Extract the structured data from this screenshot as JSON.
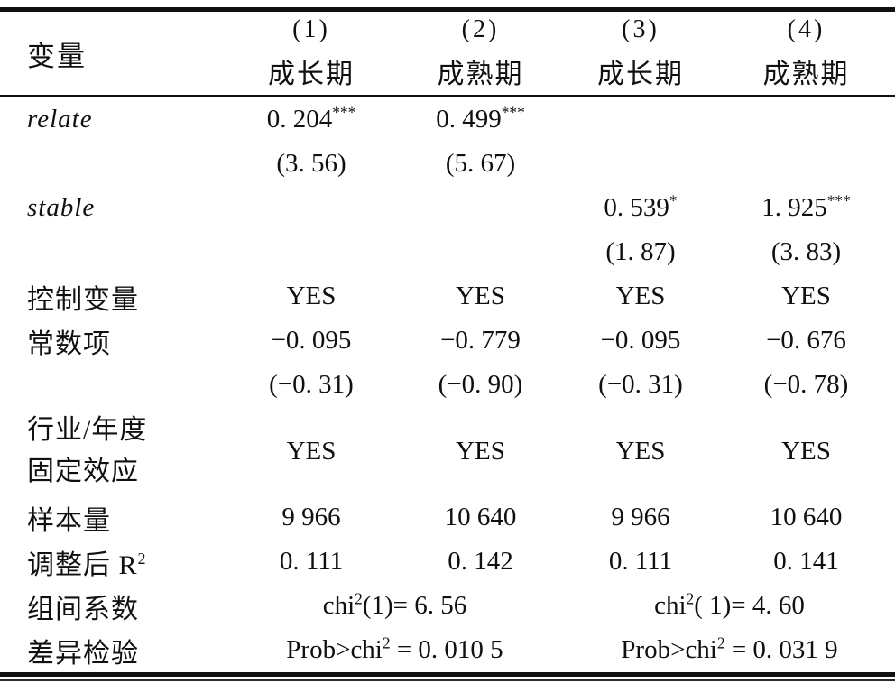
{
  "table": {
    "header": {
      "var_label": "变量",
      "columns": [
        {
          "num": "(1)",
          "stage": "成长期"
        },
        {
          "num": "(2)",
          "stage": "成熟期"
        },
        {
          "num": "(3)",
          "stage": "成长期"
        },
        {
          "num": "(4)",
          "stage": "成熟期"
        }
      ]
    },
    "rows": {
      "relate": {
        "label": "relate",
        "c1": "0. 204",
        "c1sup": "***",
        "c2": "0. 499",
        "c2sup": "***"
      },
      "relate_t": {
        "c1": "(3. 56)",
        "c2": "(5. 67)"
      },
      "stable": {
        "label": "stable",
        "c3": "0. 539",
        "c3sup": "*",
        "c4": "1. 925",
        "c4sup": "***"
      },
      "stable_t": {
        "c3": "(1. 87)",
        "c4": "(3. 83)"
      },
      "controls": {
        "label": "控制变量",
        "c1": "YES",
        "c2": "YES",
        "c3": "YES",
        "c4": "YES"
      },
      "constant": {
        "label": "常数项",
        "c1": "−0. 095",
        "c2": "−0. 779",
        "c3": "−0. 095",
        "c4": "−0. 676"
      },
      "constant_t": {
        "c1": "(−0. 31)",
        "c2": "(−0. 90)",
        "c3": "(−0. 31)",
        "c4": "(−0. 78)"
      },
      "fixed_effects": {
        "label_line1": "行业/年度",
        "label_line2": "固定效应",
        "c1": "YES",
        "c2": "YES",
        "c3": "YES",
        "c4": "YES"
      },
      "sample": {
        "label": "样本量",
        "c1": "9 966",
        "c2": "10 640",
        "c3": "9 966",
        "c4": "10 640"
      },
      "adj_r2": {
        "label_pre": "调整后 R",
        "label_sup": "2",
        "c1": "0. 111",
        "c2": "0. 142",
        "c3": "0. 111",
        "c4": "0. 141"
      },
      "chi_test": {
        "label": "组间系数",
        "left_pre": "chi",
        "left_sup": "2",
        "left_post": "(1)= 6. 56",
        "right_pre": "chi",
        "right_sup": "2",
        "right_post": "( 1)= 4. 60"
      },
      "prob_test": {
        "label": "差异检验",
        "left_pre": "Prob>chi",
        "left_sup": "2",
        "left_post": " = 0. 010 5",
        "right_pre": "Prob>chi",
        "right_sup": "2",
        "right_post": " = 0. 031 9"
      }
    }
  }
}
